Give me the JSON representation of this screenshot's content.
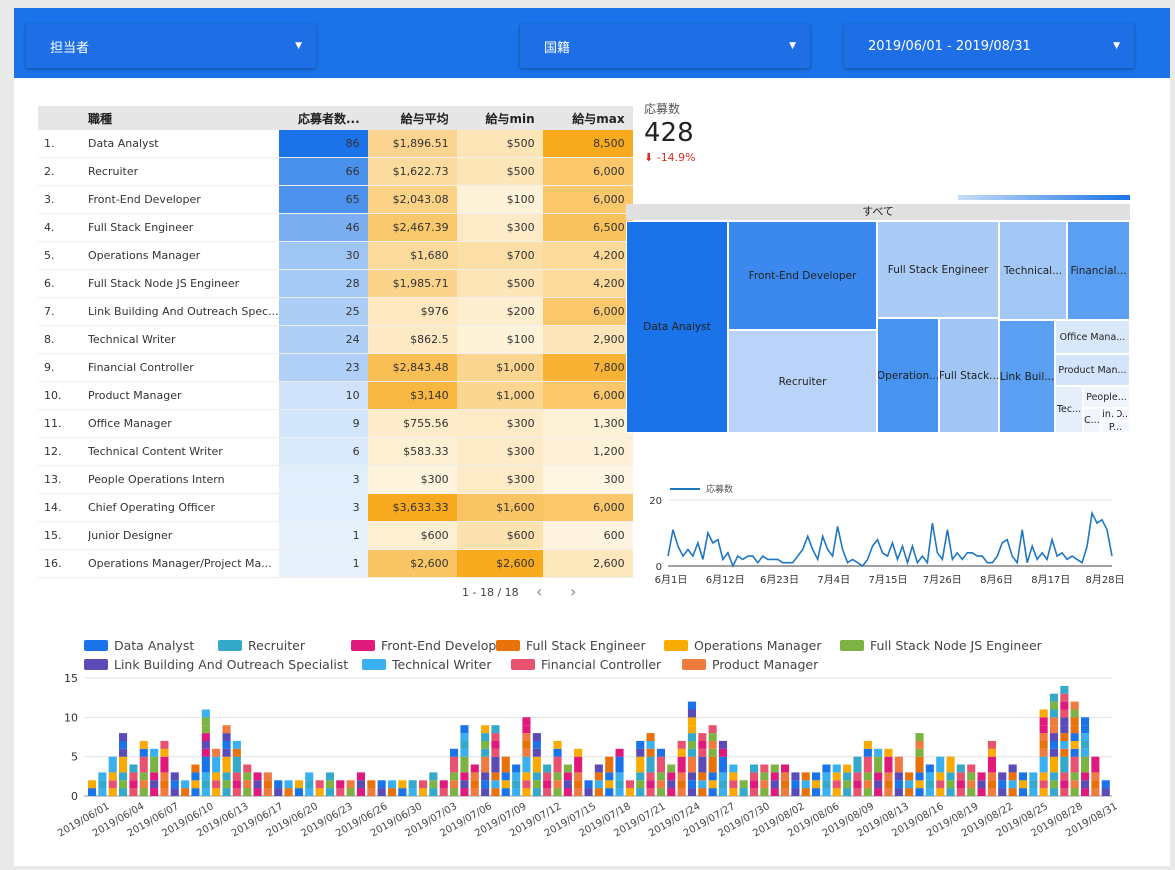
{
  "filters": [
    {
      "label": "担当者"
    },
    {
      "label": "国籍"
    },
    {
      "label": "2019/06/01 - 2019/08/31"
    }
  ],
  "table": {
    "headers": [
      "職種",
      "応募者数...",
      "給与平均",
      "給与min",
      "給与max"
    ],
    "rows": [
      {
        "idx": "1.",
        "name": "Data Analyst",
        "count": "86",
        "avg": "$1,896.51",
        "min": "$500",
        "max": "8,500"
      },
      {
        "idx": "2.",
        "name": "Recruiter",
        "count": "66",
        "avg": "$1,622.73",
        "min": "$500",
        "max": "6,000"
      },
      {
        "idx": "3.",
        "name": "Front-End Developer",
        "count": "65",
        "avg": "$2,043.08",
        "min": "$100",
        "max": "6,000"
      },
      {
        "idx": "4.",
        "name": "Full Stack Engineer",
        "count": "46",
        "avg": "$2,467.39",
        "min": "$300",
        "max": "6,500"
      },
      {
        "idx": "5.",
        "name": "Operations Manager",
        "count": "30",
        "avg": "$1,680",
        "min": "$700",
        "max": "4,200"
      },
      {
        "idx": "6.",
        "name": "Full Stack Node JS Engineer",
        "count": "28",
        "avg": "$1,985.71",
        "min": "$500",
        "max": "4,200"
      },
      {
        "idx": "7.",
        "name": "Link Building And Outreach Spec...",
        "count": "25",
        "avg": "$976",
        "min": "$200",
        "max": "6,000"
      },
      {
        "idx": "8.",
        "name": "Technical Writer",
        "count": "24",
        "avg": "$862.5",
        "min": "$100",
        "max": "2,900"
      },
      {
        "idx": "9.",
        "name": "Financial Controller",
        "count": "23",
        "avg": "$2,843.48",
        "min": "$1,000",
        "max": "7,800"
      },
      {
        "idx": "10.",
        "name": "Product Manager",
        "count": "10",
        "avg": "$3,140",
        "min": "$1,000",
        "max": "6,000"
      },
      {
        "idx": "11.",
        "name": "Office Manager",
        "count": "9",
        "avg": "$755.56",
        "min": "$300",
        "max": "1,300"
      },
      {
        "idx": "12.",
        "name": "Technical Content Writer",
        "count": "6",
        "avg": "$583.33",
        "min": "$300",
        "max": "1,200"
      },
      {
        "idx": "13.",
        "name": "People Operations Intern",
        "count": "3",
        "avg": "$300",
        "min": "$300",
        "max": "300"
      },
      {
        "idx": "14.",
        "name": "Chief Operating Officer",
        "count": "3",
        "avg": "$3,633.33",
        "min": "$1,600",
        "max": "6,000"
      },
      {
        "idx": "15.",
        "name": "Junior Designer",
        "count": "1",
        "avg": "$600",
        "min": "$600",
        "max": "600"
      },
      {
        "idx": "16.",
        "name": "Operations Manager/Project Ma...",
        "count": "1",
        "avg": "$2,600",
        "min": "$2,600",
        "max": "2,600"
      }
    ],
    "pagination": "1 - 18 / 18"
  },
  "scorecard": {
    "label": "応募数",
    "value": "428",
    "delta": "-14.9%"
  },
  "treemap": {
    "header": "すべて",
    "tiles": [
      {
        "label": "Data Analyst",
        "value": 86
      },
      {
        "label": "Front-End Developer",
        "value": 65
      },
      {
        "label": "Recruiter",
        "value": 66
      },
      {
        "label": "Full Stack Engineer",
        "value": 46
      },
      {
        "label": "Operation...",
        "value": 30
      },
      {
        "label": "Full Stack...",
        "value": 28
      },
      {
        "label": "Technical...",
        "value": 24
      },
      {
        "label": "Financial...",
        "value": 23
      },
      {
        "label": "Link Buil...",
        "value": 25
      },
      {
        "label": "Office Mana...",
        "value": 9
      },
      {
        "label": "Product Man...",
        "value": 10
      },
      {
        "label": "Tec...",
        "value": 6
      },
      {
        "label": "People...",
        "value": 3
      },
      {
        "label": "C...",
        "value": 3
      },
      {
        "label": "Lin...",
        "value": 1
      },
      {
        "label": "O...",
        "value": 1
      },
      {
        "label": "P...",
        "value": 1
      }
    ]
  },
  "chart_data": [
    {
      "type": "line",
      "series": [
        {
          "name": "応募数",
          "values": [
            3,
            11,
            6,
            3,
            5,
            3,
            7,
            2,
            10,
            7,
            8,
            2,
            4,
            0,
            3,
            2,
            3,
            3,
            1,
            3,
            2,
            2,
            2,
            1,
            1,
            1,
            3,
            5,
            9,
            5,
            2,
            9,
            5,
            3,
            12,
            5,
            1,
            2,
            1,
            0,
            2,
            6,
            8,
            4,
            3,
            7,
            2,
            6,
            1,
            6,
            1,
            3,
            1,
            13,
            4,
            2,
            11,
            2,
            4,
            2,
            4,
            4,
            3,
            3,
            1,
            1,
            3,
            7,
            8,
            3,
            1,
            11,
            1,
            6,
            2,
            4,
            2,
            8,
            3,
            4,
            2,
            3,
            2,
            1,
            6,
            16,
            13,
            14,
            11,
            3
          ]
        }
      ],
      "xticks": [
        "6月1日",
        "6月12日",
        "6月23日",
        "7月4日",
        "7月15日",
        "7月26日",
        "8月6日",
        "8月17日",
        "8月28日"
      ],
      "ylim": [
        0,
        20
      ],
      "yticks": [
        0,
        20
      ],
      "legend": "top-left"
    },
    {
      "type": "bar",
      "stacked": true,
      "series": [
        {
          "name": "Data Analyst",
          "color": "#1a73e8"
        },
        {
          "name": "Recruiter",
          "color": "#34a9c9"
        },
        {
          "name": "Front-End Developer",
          "color": "#e0197d"
        },
        {
          "name": "Full Stack Engineer",
          "color": "#e8710a"
        },
        {
          "name": "Operations Manager",
          "color": "#f9ab00"
        },
        {
          "name": "Full Stack Node JS Engineer",
          "color": "#7cb342"
        },
        {
          "name": "Link Building And Outreach Specialist",
          "color": "#5b4bb7"
        },
        {
          "name": "Technical Writer",
          "color": "#3ab0f0"
        },
        {
          "name": "Financial Controller",
          "color": "#e8516f"
        },
        {
          "name": "Product Manager",
          "color": "#f07b3f"
        }
      ],
      "totals": [
        2,
        3,
        5,
        8,
        4,
        7,
        6,
        7,
        3,
        2,
        4,
        11,
        6,
        9,
        7,
        4,
        3,
        3,
        2,
        2,
        2,
        3,
        2,
        3,
        2,
        2,
        3,
        2,
        2,
        2,
        2,
        2,
        2,
        3,
        2,
        6,
        9,
        4,
        9,
        9,
        5,
        4,
        10,
        8,
        4,
        7,
        4,
        6,
        2,
        4,
        5,
        6,
        2,
        7,
        8,
        6,
        4,
        7,
        12,
        8,
        9,
        7,
        4,
        2,
        4,
        4,
        4,
        4,
        3,
        3,
        3,
        4,
        4,
        4,
        5,
        7,
        6,
        6,
        5,
        3,
        8,
        4,
        5,
        5,
        4,
        4,
        3,
        7,
        3,
        4,
        3,
        3,
        11,
        13,
        14,
        12,
        10,
        5,
        2
      ],
      "xticks": [
        "2019/06/01",
        "2019/06/04",
        "2019/06/07",
        "2019/06/10",
        "2019/06/13",
        "2019/06/17",
        "2019/06/20",
        "2019/06/23",
        "2019/06/26",
        "2019/06/30",
        "2019/07/03",
        "2019/07/06",
        "2019/07/09",
        "2019/07/12",
        "2019/07/15",
        "2019/07/18",
        "2019/07/21",
        "2019/07/24",
        "2019/07/27",
        "2019/07/30",
        "2019/08/02",
        "2019/08/06",
        "2019/08/09",
        "2019/08/13",
        "2019/08/16",
        "2019/08/19",
        "2019/08/22",
        "2019/08/25",
        "2019/08/28",
        "2019/08/31"
      ],
      "ylim": [
        0,
        15
      ],
      "yticks": [
        0,
        5,
        10,
        15
      ],
      "legend": "top"
    }
  ]
}
